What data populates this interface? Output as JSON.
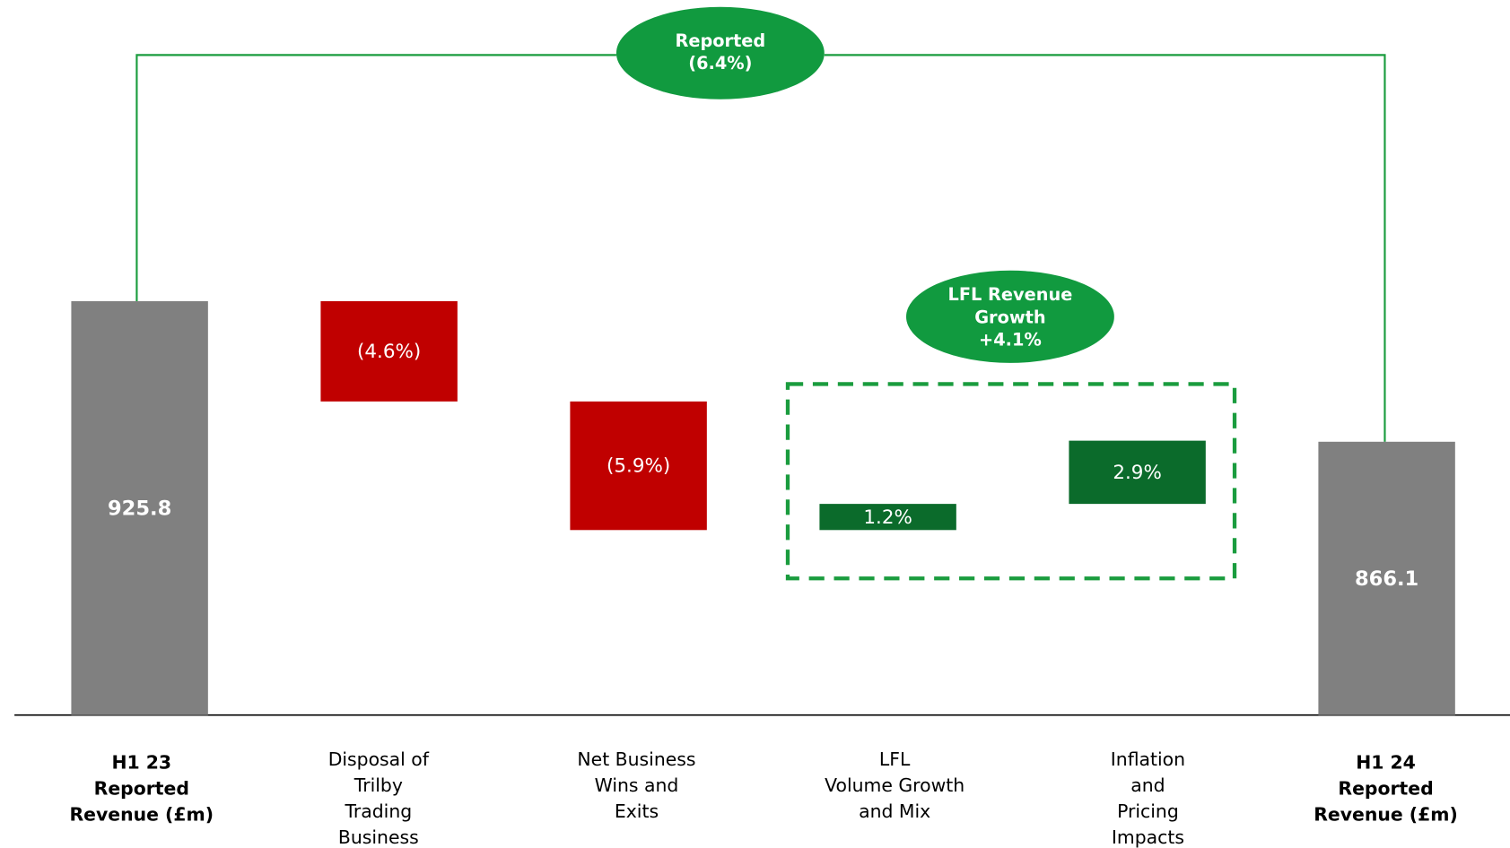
{
  "chart_data": {
    "type": "waterfall",
    "categories": [
      [
        "H1 23",
        "Reported",
        "Revenue (£m)"
      ],
      [
        "Disposal of",
        "Trilby",
        "Trading",
        "Business"
      ],
      [
        "Net Business",
        "Wins and",
        "Exits"
      ],
      [
        "LFL",
        "Volume Growth",
        "and Mix"
      ],
      [
        "Inflation",
        "and",
        "Pricing",
        "Impacts"
      ],
      [
        "H1 24",
        "Reported",
        "Revenue (£m)"
      ]
    ],
    "measure": [
      "absolute",
      "relative",
      "relative",
      "relative",
      "relative",
      "absolute"
    ],
    "values": [
      925.8,
      -4.6,
      -5.9,
      1.2,
      2.9,
      866.1
    ],
    "value_labels": [
      "925.8",
      "(4.6%)",
      "(5.9%)",
      "1.2%",
      "2.9%",
      "866.1"
    ],
    "colors": [
      "#808080",
      "#c00000",
      "#c00000",
      "#0b6b2b",
      "#0b6b2b",
      "#808080"
    ],
    "ylim": [
      750,
      1050
    ],
    "annotations": [
      {
        "text": [
          "Reported",
          "(6.4%)"
        ]
      },
      {
        "text": [
          "LFL Revenue",
          "Growth",
          "+4.1%"
        ]
      }
    ]
  }
}
